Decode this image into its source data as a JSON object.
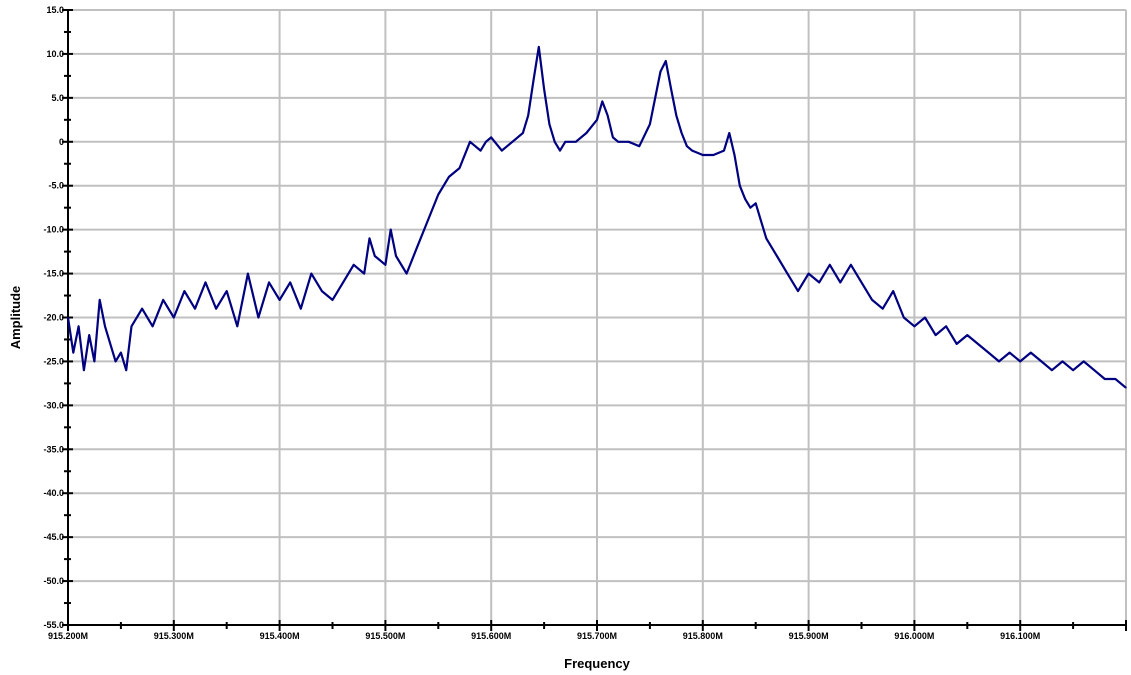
{
  "chart_data": {
    "type": "line",
    "xlabel": "Frequency",
    "ylabel": "Amplitude",
    "xlim": [
      915.2,
      916.2
    ],
    "ylim": [
      -55,
      15
    ],
    "grid": true,
    "x_ticks": [
      915.2,
      915.3,
      915.4,
      915.5,
      915.6,
      915.7,
      915.8,
      915.9,
      916.0,
      916.1
    ],
    "x_tick_labels": [
      "915.200M",
      "915.300M",
      "915.400M",
      "915.500M",
      "915.600M",
      "915.700M",
      "915.800M",
      "915.900M",
      "916.000M",
      "916.100M"
    ],
    "y_ticks": [
      15,
      10,
      5,
      0,
      -5,
      -10,
      -15,
      -20,
      -25,
      -30,
      -35,
      -40,
      -45,
      -50,
      -55
    ],
    "y_tick_labels": [
      "15.0",
      "10.0",
      "5.0",
      "0",
      "-5.0",
      "-10.0",
      "-15.0",
      "-20.0",
      "-25.0",
      "-30.0",
      "-35.0",
      "-40.0",
      "-45.0",
      "-50.0",
      "-55.0"
    ],
    "series": [
      {
        "color": "#000080",
        "x": [
          915.2,
          915.205,
          915.21,
          915.215,
          915.22,
          915.225,
          915.23,
          915.235,
          915.24,
          915.245,
          915.25,
          915.255,
          915.26,
          915.27,
          915.28,
          915.29,
          915.3,
          915.31,
          915.32,
          915.33,
          915.34,
          915.35,
          915.36,
          915.37,
          915.38,
          915.39,
          915.4,
          915.41,
          915.42,
          915.43,
          915.44,
          915.45,
          915.46,
          915.47,
          915.48,
          915.485,
          915.49,
          915.5,
          915.505,
          915.51,
          915.52,
          915.53,
          915.54,
          915.55,
          915.56,
          915.57,
          915.58,
          915.59,
          915.595,
          915.6,
          915.61,
          915.62,
          915.63,
          915.635,
          915.64,
          915.645,
          915.65,
          915.655,
          915.66,
          915.665,
          915.67,
          915.68,
          915.69,
          915.7,
          915.705,
          915.71,
          915.715,
          915.72,
          915.73,
          915.74,
          915.75,
          915.755,
          915.76,
          915.765,
          915.77,
          915.775,
          915.78,
          915.785,
          915.79,
          915.8,
          915.81,
          915.82,
          915.825,
          915.83,
          915.835,
          915.84,
          915.845,
          915.85,
          915.855,
          915.86,
          915.87,
          915.88,
          915.89,
          915.9,
          915.91,
          915.92,
          915.93,
          915.94,
          915.95,
          915.96,
          915.97,
          915.98,
          915.99,
          916.0,
          916.01,
          916.02,
          916.03,
          916.04,
          916.05,
          916.06,
          916.07,
          916.08,
          916.09,
          916.1,
          916.11,
          916.12,
          916.13,
          916.14,
          916.15,
          916.16,
          916.17,
          916.18,
          916.19,
          916.2
        ],
        "values": [
          -20,
          -24,
          -21,
          -26,
          -22,
          -25,
          -18,
          -21,
          -23,
          -25,
          -24,
          -26,
          -21,
          -19,
          -21,
          -18,
          -20,
          -17,
          -19,
          -16,
          -19,
          -17,
          -21,
          -15,
          -20,
          -16,
          -18,
          -16,
          -19,
          -15,
          -17,
          -18,
          -16,
          -14,
          -15,
          -11,
          -13,
          -14,
          -10,
          -13,
          -15,
          -12,
          -9,
          -6,
          -4,
          -3,
          0,
          -1,
          0,
          0.5,
          -1,
          0,
          1,
          3,
          7,
          10.8,
          6,
          2,
          0,
          -1,
          0,
          0,
          1,
          2.5,
          4.6,
          3,
          0.5,
          0,
          0,
          -0.5,
          2,
          5,
          8,
          9.2,
          6,
          3,
          1,
          -0.5,
          -1,
          -1.5,
          -1.5,
          -1,
          1,
          -1.5,
          -5,
          -6.5,
          -7.5,
          -7,
          -9,
          -11,
          -13,
          -15,
          -17,
          -15,
          -16,
          -14,
          -16,
          -14,
          -16,
          -18,
          -19,
          -17,
          -20,
          -21,
          -20,
          -22,
          -21,
          -23,
          -22,
          -23,
          -24,
          -25,
          -24,
          -25,
          -24,
          -25,
          -26,
          -25,
          -26,
          -25,
          -26,
          -27,
          -27,
          -28
        ]
      }
    ]
  }
}
